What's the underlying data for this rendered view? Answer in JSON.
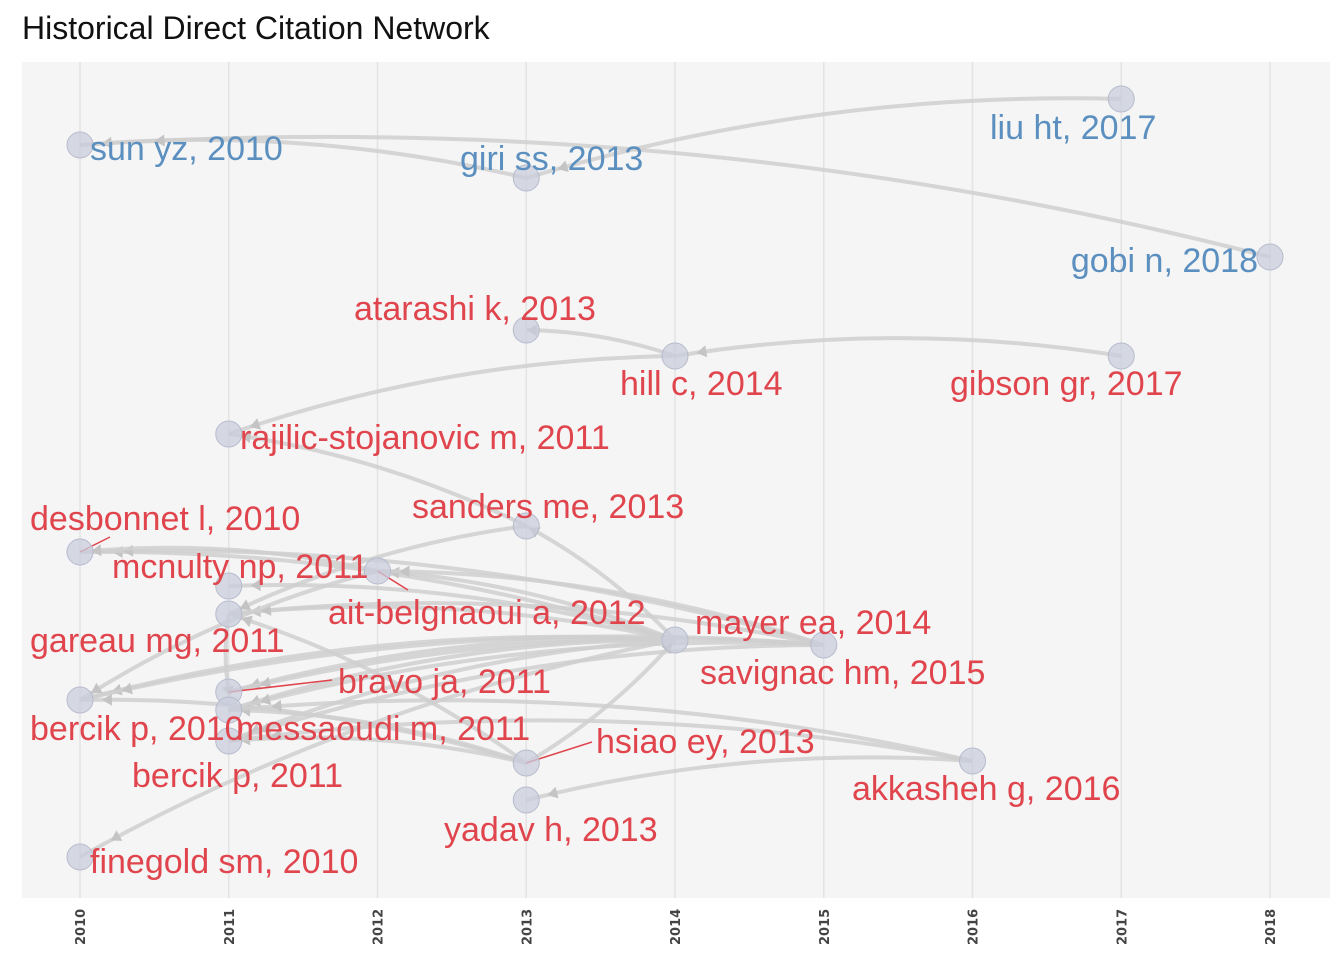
{
  "chart_data": {
    "type": "network",
    "title": "Historical Direct Citation Network",
    "xlabel": "",
    "ylabel": "",
    "xlim": [
      2009.6,
      2018.1
    ],
    "x_ticks": [
      "2010",
      "2011",
      "2012",
      "2013",
      "2014",
      "2015",
      "2016",
      "2017",
      "2018"
    ],
    "grid": "vertical",
    "colors": {
      "panel": "#f5f5f5",
      "grid": "#e3e3e3",
      "edge": "#cfcfcf",
      "node": "#c9cddc",
      "node_stroke": "#b6bbcd",
      "cluster_blue": "#5b8fbf",
      "cluster_red": "#e0454d"
    },
    "nodes": [
      {
        "id": "sun",
        "label": "sun yz, 2010",
        "year": 2010,
        "cluster": "blue"
      },
      {
        "id": "giri",
        "label": "giri ss, 2013",
        "year": 2013,
        "cluster": "blue"
      },
      {
        "id": "liu",
        "label": "liu ht, 2017",
        "year": 2017,
        "cluster": "blue"
      },
      {
        "id": "gobi",
        "label": "gobi n, 2018",
        "year": 2018,
        "cluster": "blue"
      },
      {
        "id": "atarashi",
        "label": "atarashi k, 2013",
        "year": 2013,
        "cluster": "red"
      },
      {
        "id": "hill",
        "label": "hill c, 2014",
        "year": 2014,
        "cluster": "red"
      },
      {
        "id": "gibson",
        "label": "gibson gr, 2017",
        "year": 2017,
        "cluster": "red"
      },
      {
        "id": "rajilic",
        "label": "rajilic-stojanovic m, 2011",
        "year": 2011,
        "cluster": "red"
      },
      {
        "id": "sanders",
        "label": "sanders me, 2013",
        "year": 2013,
        "cluster": "red"
      },
      {
        "id": "desbonnet",
        "label": "desbonnet l, 2010",
        "year": 2010,
        "cluster": "red"
      },
      {
        "id": "mcnulty",
        "label": "mcnulty np, 2011",
        "year": 2011,
        "cluster": "red"
      },
      {
        "id": "ait",
        "label": "ait-belgnaoui a, 2012",
        "year": 2012,
        "cluster": "red"
      },
      {
        "id": "gareau",
        "label": "gareau mg, 2011",
        "year": 2011,
        "cluster": "red"
      },
      {
        "id": "mayer",
        "label": "mayer ea, 2014",
        "year": 2014,
        "cluster": "red"
      },
      {
        "id": "savignac",
        "label": "savignac hm, 2015",
        "year": 2015,
        "cluster": "red"
      },
      {
        "id": "bravo",
        "label": "bravo ja, 2011",
        "year": 2011,
        "cluster": "red"
      },
      {
        "id": "bercik2010",
        "label": "bercik p, 2010",
        "year": 2010,
        "cluster": "red"
      },
      {
        "id": "messaoudi",
        "label": "messaoudi m, 2011",
        "year": 2011,
        "cluster": "red"
      },
      {
        "id": "hsiao",
        "label": "hsiao ey, 2013",
        "year": 2013,
        "cluster": "red"
      },
      {
        "id": "bercik2011",
        "label": "bercik p, 2011",
        "year": 2011,
        "cluster": "red"
      },
      {
        "id": "akkasheh",
        "label": "akkasheh g, 2016",
        "year": 2016,
        "cluster": "red"
      },
      {
        "id": "yadav",
        "label": "yadav h, 2013",
        "year": 2013,
        "cluster": "red"
      },
      {
        "id": "finegold",
        "label": "finegold sm, 2010",
        "year": 2010,
        "cluster": "red"
      }
    ],
    "edges": [
      [
        "giri",
        "sun"
      ],
      [
        "liu",
        "giri"
      ],
      [
        "gobi",
        "sun"
      ],
      [
        "hill",
        "atarashi"
      ],
      [
        "gibson",
        "hill"
      ],
      [
        "hill",
        "rajilic"
      ],
      [
        "sanders",
        "rajilic"
      ],
      [
        "mayer",
        "sanders"
      ],
      [
        "mayer",
        "desbonnet"
      ],
      [
        "mayer",
        "mcnulty"
      ],
      [
        "mayer",
        "gareau"
      ],
      [
        "mayer",
        "bravo"
      ],
      [
        "mayer",
        "bercik2010"
      ],
      [
        "mayer",
        "messaoudi"
      ],
      [
        "mayer",
        "bercik2011"
      ],
      [
        "mayer",
        "ait"
      ],
      [
        "savignac",
        "desbonnet"
      ],
      [
        "savignac",
        "gareau"
      ],
      [
        "savignac",
        "bravo"
      ],
      [
        "savignac",
        "bercik2010"
      ],
      [
        "savignac",
        "messaoudi"
      ],
      [
        "savignac",
        "bercik2011"
      ],
      [
        "savignac",
        "ait"
      ],
      [
        "ait",
        "desbonnet"
      ],
      [
        "ait",
        "bercik2010"
      ],
      [
        "sanders",
        "gareau"
      ],
      [
        "hsiao",
        "bercik2010"
      ],
      [
        "hsiao",
        "bercik2011"
      ],
      [
        "hsiao",
        "gareau"
      ],
      [
        "hsiao",
        "messaoudi"
      ],
      [
        "hsiao",
        "mayer"
      ],
      [
        "akkasheh",
        "bercik2011"
      ],
      [
        "akkasheh",
        "yadav"
      ],
      [
        "akkasheh",
        "messaoudi"
      ],
      [
        "mayer",
        "finegold"
      ],
      [
        "gareau",
        "bravo"
      ]
    ]
  }
}
